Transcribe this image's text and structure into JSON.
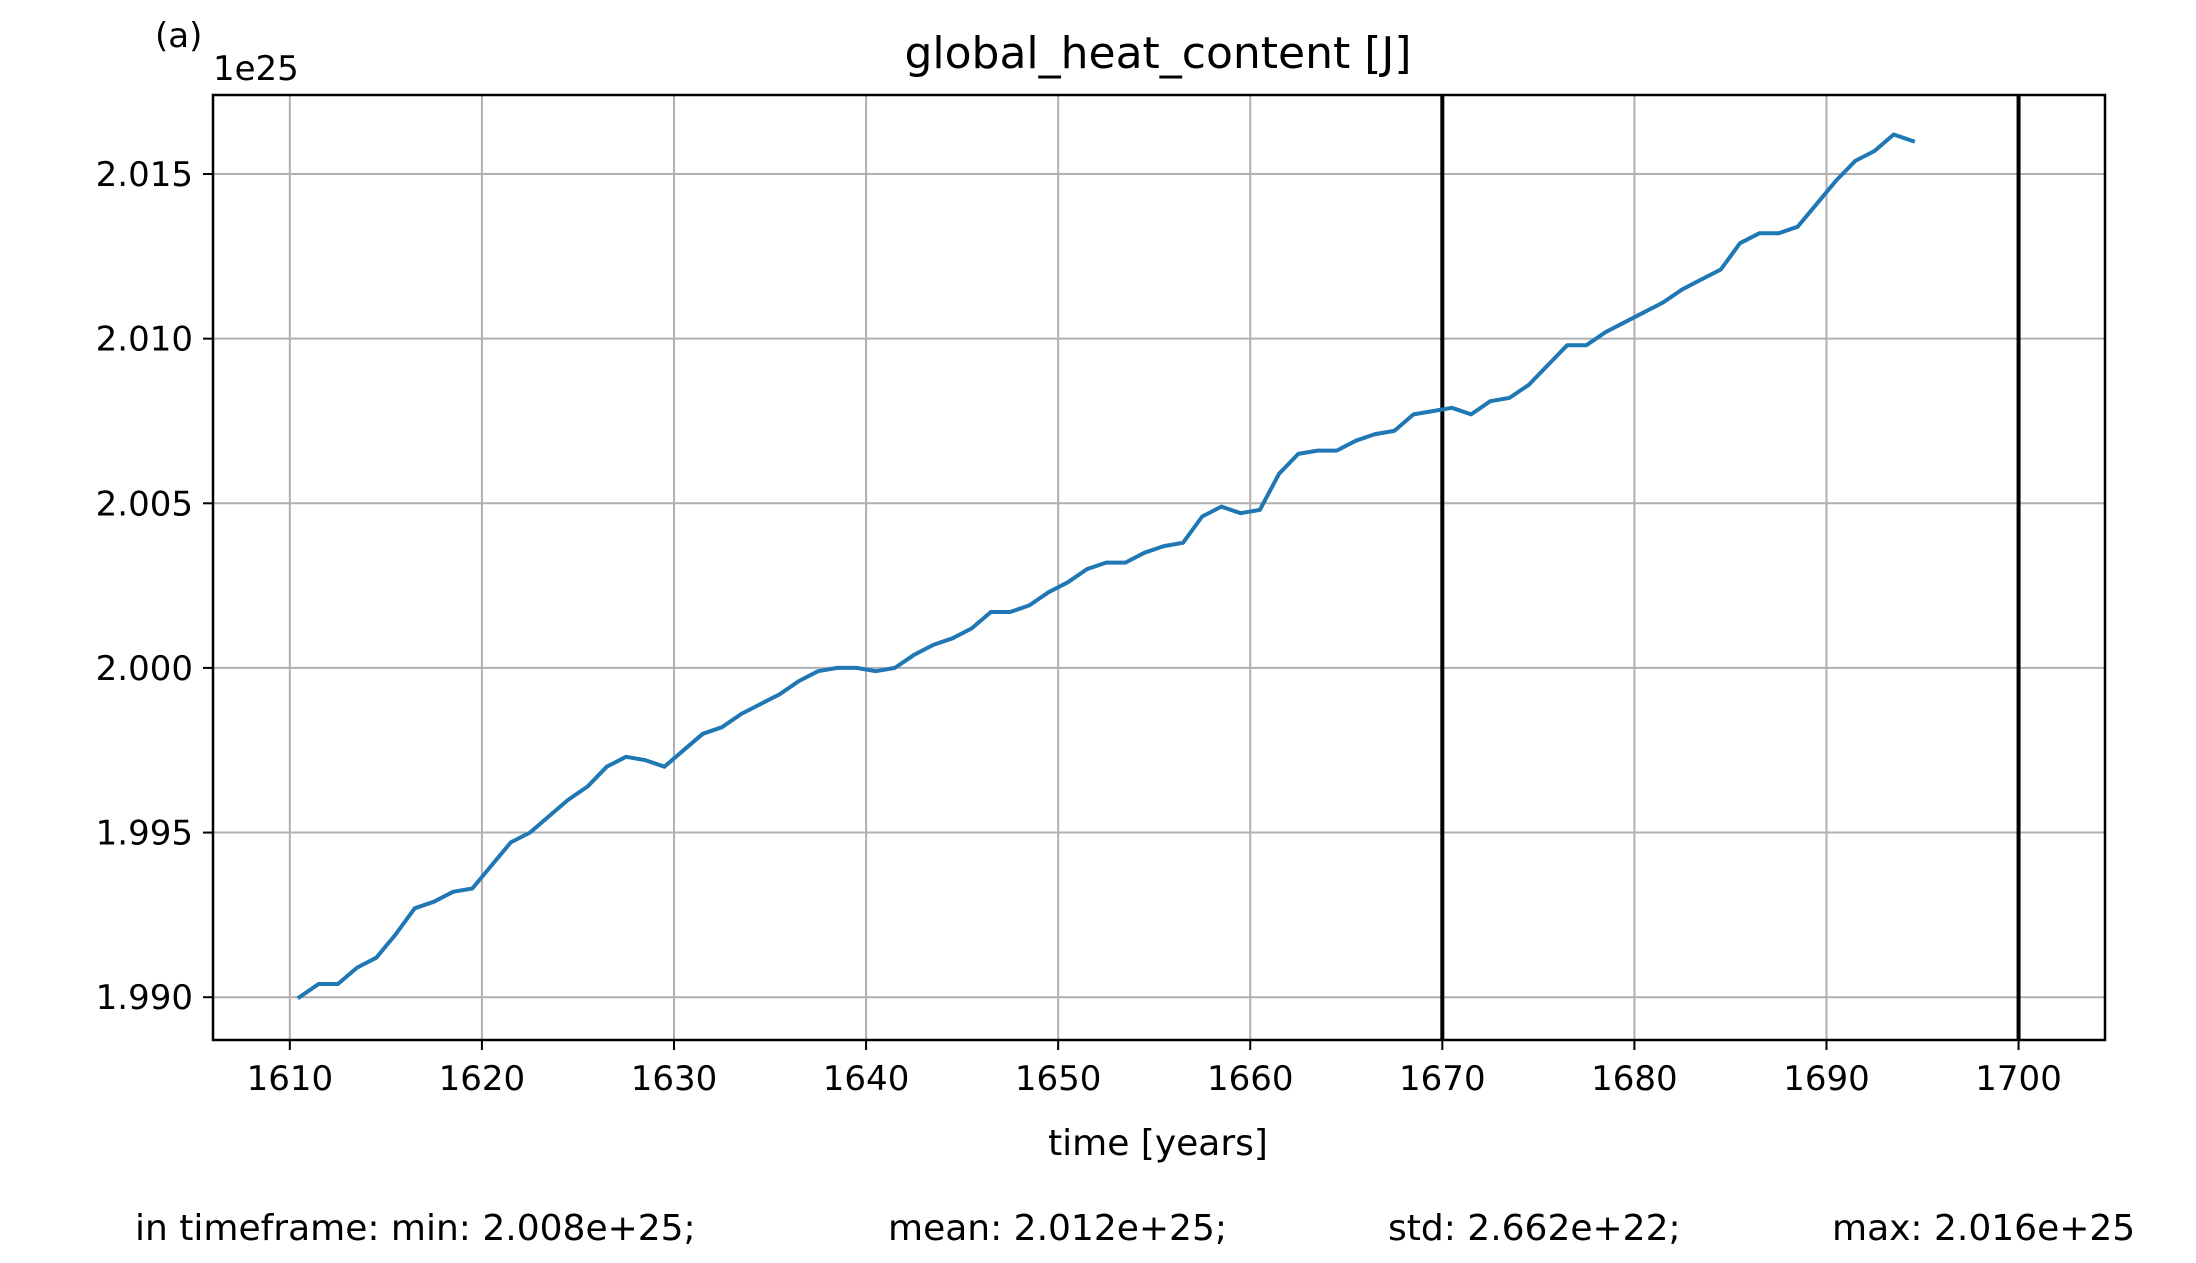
{
  "panel_label": "(a)",
  "chart_data": {
    "type": "line",
    "title": "global_heat_content [J]",
    "xlabel": "time [years]",
    "ylabel": "",
    "y_offset_label": "1e25",
    "xlim": [
      1606,
      1704.5
    ],
    "ylim": [
      1.9887,
      2.0174
    ],
    "xticks": [
      1610,
      1620,
      1630,
      1640,
      1650,
      1660,
      1670,
      1680,
      1690,
      1700
    ],
    "yticks": [
      1.99,
      1.995,
      2.0,
      2.005,
      2.01,
      2.015
    ],
    "ytick_labels": [
      "1.990",
      "1.995",
      "2.000",
      "2.005",
      "2.010",
      "2.015"
    ],
    "grid": true,
    "color": "#1f77b4",
    "vlines": [
      1670,
      1700
    ],
    "vline_color": "#000000",
    "series": [
      {
        "x": [
          1610.5,
          1611.5,
          1612.5,
          1613.5,
          1614.5,
          1615.5,
          1616.5,
          1617.5,
          1618.5,
          1619.5,
          1620.5,
          1621.5,
          1622.5,
          1623.5,
          1624.5,
          1625.5,
          1626.5,
          1627.5,
          1628.5,
          1629.5,
          1630.5,
          1631.5,
          1632.5,
          1633.5,
          1634.5,
          1635.5,
          1636.5,
          1637.5,
          1638.5,
          1639.5,
          1640.5,
          1641.5,
          1642.5,
          1643.5,
          1644.5,
          1645.5,
          1646.5,
          1647.5,
          1648.5,
          1649.5,
          1650.5,
          1651.5,
          1652.5,
          1653.5,
          1654.5,
          1655.5,
          1656.5,
          1657.5,
          1658.5,
          1659.5,
          1660.5,
          1661.5,
          1662.5,
          1663.5,
          1664.5,
          1665.5,
          1666.5,
          1667.5,
          1668.5,
          1669.5,
          1670.5,
          1671.5,
          1672.5,
          1673.5,
          1674.5,
          1675.5,
          1676.5,
          1677.5,
          1678.5,
          1679.5,
          1680.5,
          1681.5,
          1682.5,
          1683.5,
          1684.5,
          1685.5,
          1686.5,
          1687.5,
          1688.5,
          1689.5,
          1690.5,
          1691.5,
          1692.5,
          1693.5,
          1694.5
        ],
        "values": [
          1.99,
          1.9904,
          1.9904,
          1.9909,
          1.9912,
          1.9919,
          1.9927,
          1.9929,
          1.9932,
          1.9933,
          1.994,
          1.9947,
          1.995,
          1.9955,
          1.996,
          1.9964,
          1.997,
          1.9973,
          1.9972,
          1.997,
          1.9975,
          1.998,
          1.9982,
          1.9986,
          1.9989,
          1.9992,
          1.9996,
          1.9999,
          2.0,
          2.0,
          1.9999,
          2.0,
          2.0004,
          2.0007,
          2.0009,
          2.0012,
          2.0017,
          2.0017,
          2.0019,
          2.0023,
          2.0026,
          2.003,
          2.0032,
          2.0032,
          2.0035,
          2.0037,
          2.0038,
          2.0046,
          2.0049,
          2.0047,
          2.0048,
          2.0059,
          2.0065,
          2.0066,
          2.0066,
          2.0069,
          2.0071,
          2.0072,
          2.0077,
          2.0078,
          2.0079,
          2.0077,
          2.0081,
          2.0082,
          2.0086,
          2.0092,
          2.0098,
          2.0098,
          2.0102,
          2.0105,
          2.0108,
          2.0111,
          2.0115,
          2.0118,
          2.0121,
          2.0129,
          2.0132,
          2.0132,
          2.0134,
          2.0141,
          2.0148,
          2.0154,
          2.0157,
          2.0162,
          2.016
        ]
      }
    ]
  },
  "stats": {
    "min_text": "in timeframe: min: 2.008e+25;",
    "mean_text": "mean: 2.012e+25;",
    "std_text": "std: 2.662e+22;",
    "max_text": "max: 2.016e+25"
  }
}
